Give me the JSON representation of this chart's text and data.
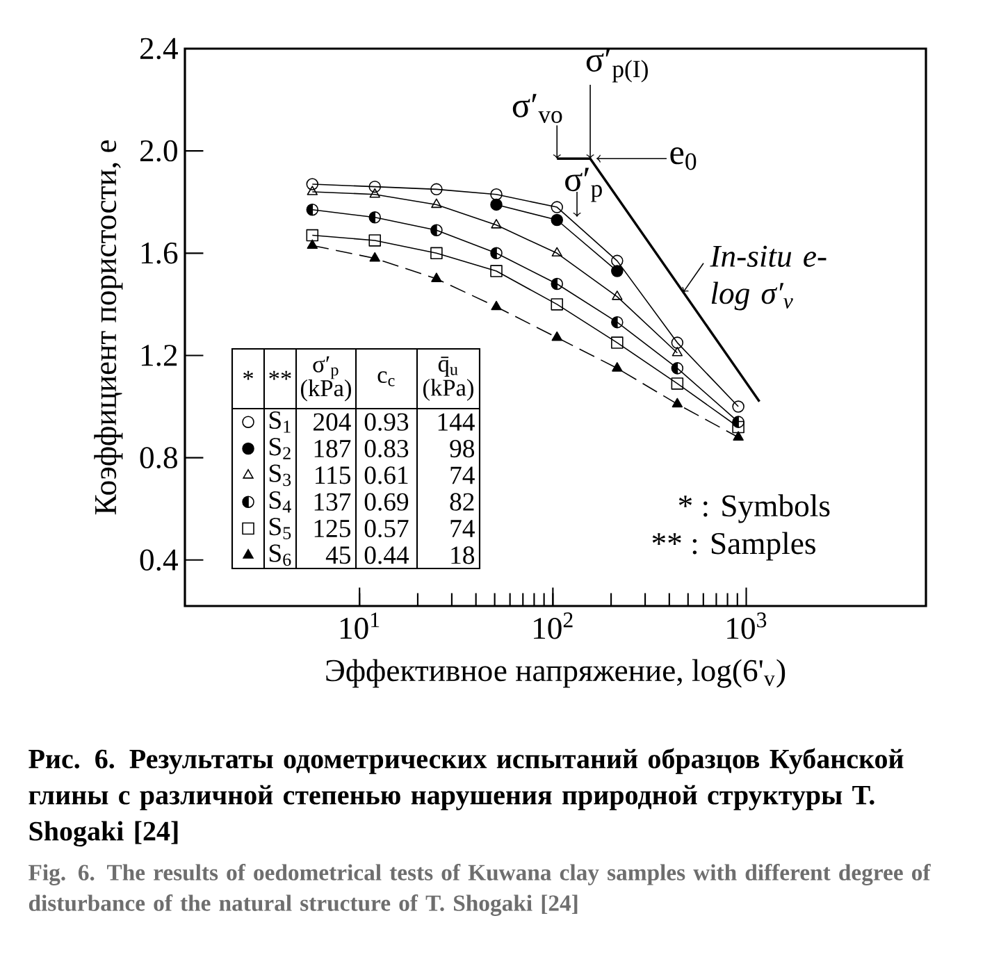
{
  "chart_data": {
    "type": "line",
    "title": "Рис. 6. Результаты одометрических испытаний образцов Кубанской глины с различной степенью нарушения природной структуры T. Shogaki [24]",
    "subtitle": "Fig. 6. The results of oedometrical tests of Kuwana clay samples with different degree of disturbance of the natural structure of T. Shogaki [24]",
    "xlabel": "Эффективное напряжение, log(6'$_{v}$)",
    "ylabel": "Коэффициент пористости, e",
    "log": "x",
    "xlim": [
      1.25,
      8500
    ],
    "ylim": [
      0.22,
      2.4
    ],
    "xticks": [
      {
        "value": 10,
        "label": "10$^{1}$"
      },
      {
        "value": 100,
        "label": "10$^{2}$"
      },
      {
        "value": 1000,
        "label": "10$^{3}$"
      }
    ],
    "yticks": [
      0.4,
      0.8,
      1.2,
      1.6,
      {
        "value": 2,
        "label": "2.0"
      },
      2.4
    ],
    "legend": "left",
    "x": [
      5.7,
      12,
      25,
      51,
      105,
      215,
      440,
      910
    ],
    "series": [
      {
        "name": "S$_{1}$",
        "color": "#000000",
        "marker": "circle",
        "line_style": "solid",
        "values": [
          1.87,
          1.86,
          1.85,
          1.83,
          1.78,
          1.57,
          1.25,
          1.0
        ]
      },
      {
        "name": "S$_{2}$",
        "color": "#000000",
        "marker": "circle-filled",
        "line_style": "solid",
        "values": [
          null,
          null,
          null,
          1.79,
          1.73,
          1.53,
          null,
          null
        ]
      },
      {
        "name": "S$_{3}$",
        "color": "#000000",
        "marker": "triangle",
        "line_style": "solid",
        "values": [
          1.84,
          1.83,
          1.79,
          1.71,
          1.6,
          1.43,
          1.21,
          null
        ]
      },
      {
        "name": "S$_{4}$",
        "color": "#000000",
        "marker": "circle-half",
        "line_style": "solid",
        "values": [
          1.77,
          1.74,
          1.69,
          1.6,
          1.48,
          1.33,
          1.15,
          0.94
        ]
      },
      {
        "name": "S$_{5}$",
        "color": "#000000",
        "marker": "square",
        "line_style": "solid",
        "values": [
          1.67,
          1.65,
          1.6,
          1.53,
          1.4,
          1.25,
          1.09,
          0.92
        ]
      },
      {
        "name": "S$_{6}$",
        "color": "#000000",
        "marker": "triangle-filled",
        "line_style": "dashed",
        "values": [
          1.63,
          1.58,
          1.5,
          1.39,
          1.27,
          1.15,
          1.01,
          0.88
        ]
      },
      {
        "name": "In-situ e-log σ′$_{v}$",
        "color": "#000000",
        "line_style": "solid",
        "x": [
          105,
          156,
          1170
        ],
        "values": [
          1.97,
          1.97,
          1.02
        ]
      }
    ],
    "annotations": [
      {
        "text": "σ′$_{p(I)}$",
        "x": 156,
        "y": 1.97
      },
      {
        "text": "σ′$_{vo}$",
        "x": 105,
        "y": 1.97
      },
      {
        "text": "e$_{0}$",
        "x": 168,
        "y": 1.97
      },
      "*",
      "**",
      "σ′$_{p}$ (kPa)",
      "c$_{c}$",
      "q̄$_{u}$ (kPa)",
      "204",
      "0.93",
      "144",
      "187",
      "0.83",
      "98",
      "115",
      "0.61",
      "74",
      "137",
      "0.69",
      "82",
      "125",
      "0.57",
      "74",
      "45",
      "0.44",
      "18",
      "* : Symbols",
      "** : Samples",
      "σ′$_{p}$"
    ]
  }
}
